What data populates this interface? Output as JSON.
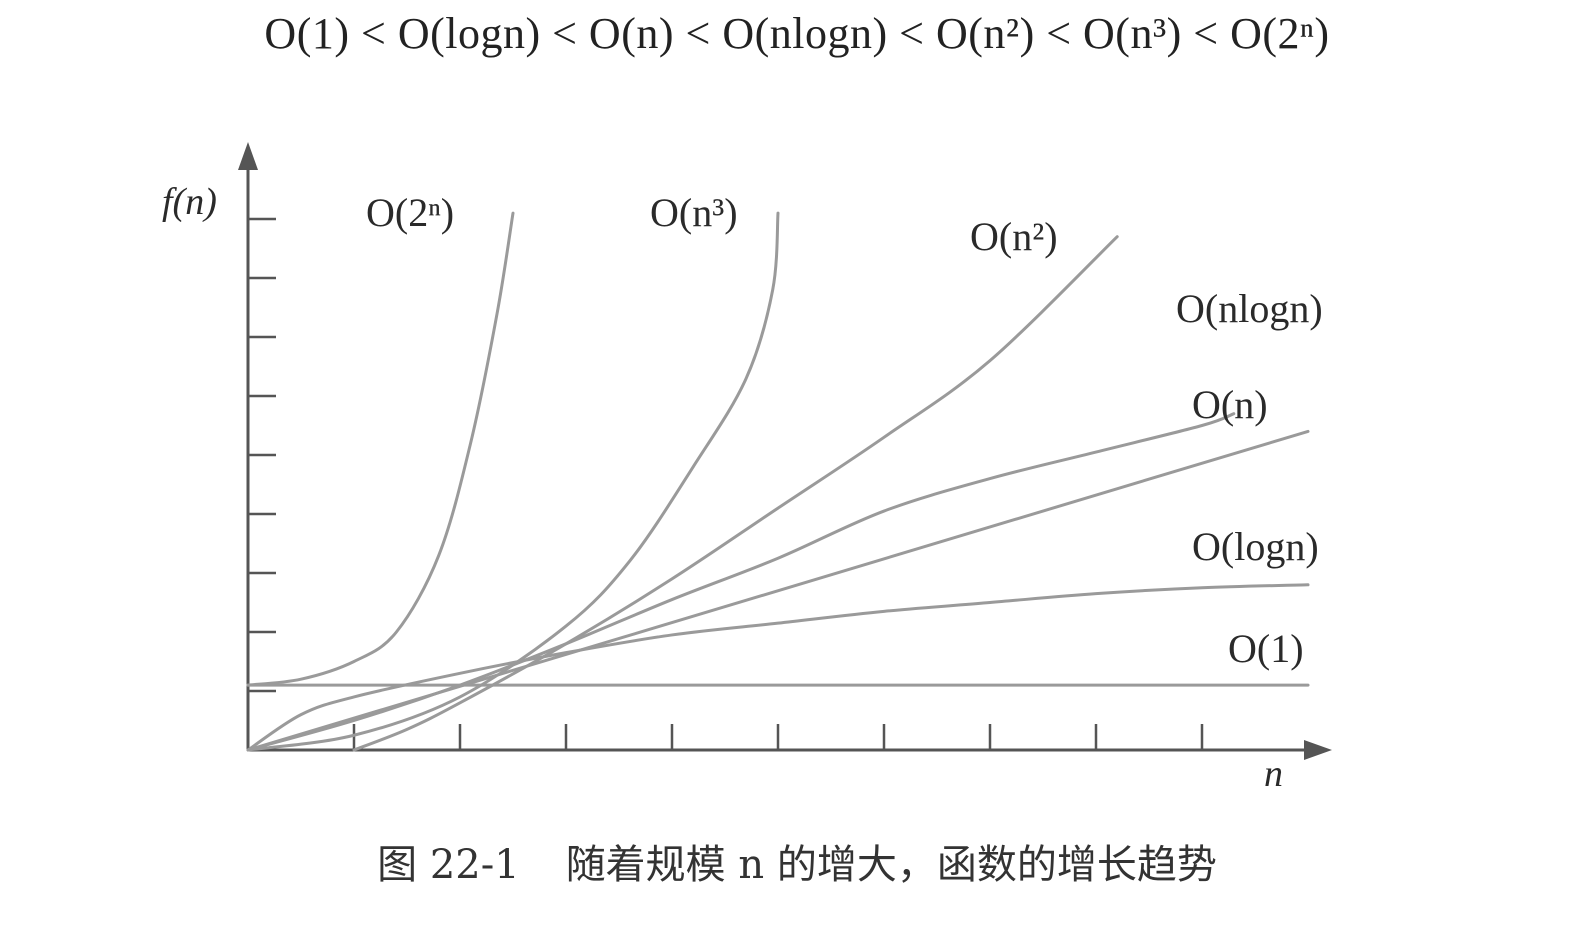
{
  "headline": "O(1) < O(logn) < O(n) < O(nlogn) < O(n²) < O(n³) < O(2ⁿ)",
  "caption": {
    "figure_number": "图 22-1",
    "text": "随着规模 n 的增大，函数的增长趋势"
  },
  "chart_data": {
    "type": "line",
    "title": "",
    "xlabel": "n",
    "ylabel": "f(n)",
    "xlim": [
      0,
      10
    ],
    "ylim": [
      0,
      9
    ],
    "x_ticks": [
      1,
      2,
      3,
      4,
      5,
      6,
      7,
      8,
      9
    ],
    "y_ticks": [
      1,
      2,
      3,
      4,
      5,
      6,
      7,
      8,
      9
    ],
    "tick_labels_shown": false,
    "grid": false,
    "line_color": "#9a9a9a",
    "series": [
      {
        "name": "O(1)",
        "points": [
          [
            0,
            1.1
          ],
          [
            10,
            1.1
          ]
        ]
      },
      {
        "name": "O(logn)",
        "points": [
          [
            0,
            0
          ],
          [
            0.5,
            0.6
          ],
          [
            1,
            0.9
          ],
          [
            2,
            1.3
          ],
          [
            3,
            1.65
          ],
          [
            4,
            1.95
          ],
          [
            5,
            2.15
          ],
          [
            6,
            2.35
          ],
          [
            7,
            2.5
          ],
          [
            8,
            2.65
          ],
          [
            9,
            2.75
          ],
          [
            10,
            2.8
          ]
        ]
      },
      {
        "name": "O(n)",
        "points": [
          [
            0,
            0
          ],
          [
            10,
            5.4
          ]
        ]
      },
      {
        "name": "O(nlogn)",
        "points": [
          [
            0,
            0
          ],
          [
            1,
            0.5
          ],
          [
            2,
            1.1
          ],
          [
            3,
            1.8
          ],
          [
            4,
            2.55
          ],
          [
            5,
            3.25
          ],
          [
            6,
            4.05
          ],
          [
            7,
            4.6
          ],
          [
            8,
            5.05
          ],
          [
            9,
            5.5
          ],
          [
            9.3,
            5.7
          ]
        ]
      },
      {
        "name": "O(n²)",
        "points": [
          [
            1,
            0
          ],
          [
            1.5,
            0.35
          ],
          [
            2,
            0.8
          ],
          [
            3,
            1.8
          ],
          [
            4,
            2.9
          ],
          [
            5,
            4.1
          ],
          [
            6,
            5.3
          ],
          [
            7,
            6.6
          ],
          [
            8.2,
            8.7
          ]
        ]
      },
      {
        "name": "O(n³)",
        "points": [
          [
            0,
            0
          ],
          [
            1,
            0.25
          ],
          [
            2,
            0.9
          ],
          [
            3,
            2.1
          ],
          [
            3.6,
            3.2
          ],
          [
            4.2,
            4.8
          ],
          [
            4.7,
            6.3
          ],
          [
            4.95,
            7.8
          ],
          [
            5.0,
            9.1
          ]
        ]
      },
      {
        "name": "O(2ⁿ)",
        "points": [
          [
            0,
            1.1
          ],
          [
            0.5,
            1.2
          ],
          [
            1,
            1.5
          ],
          [
            1.4,
            2.0
          ],
          [
            1.8,
            3.3
          ],
          [
            2.1,
            5.2
          ],
          [
            2.35,
            7.4
          ],
          [
            2.5,
            9.1
          ]
        ]
      }
    ]
  }
}
